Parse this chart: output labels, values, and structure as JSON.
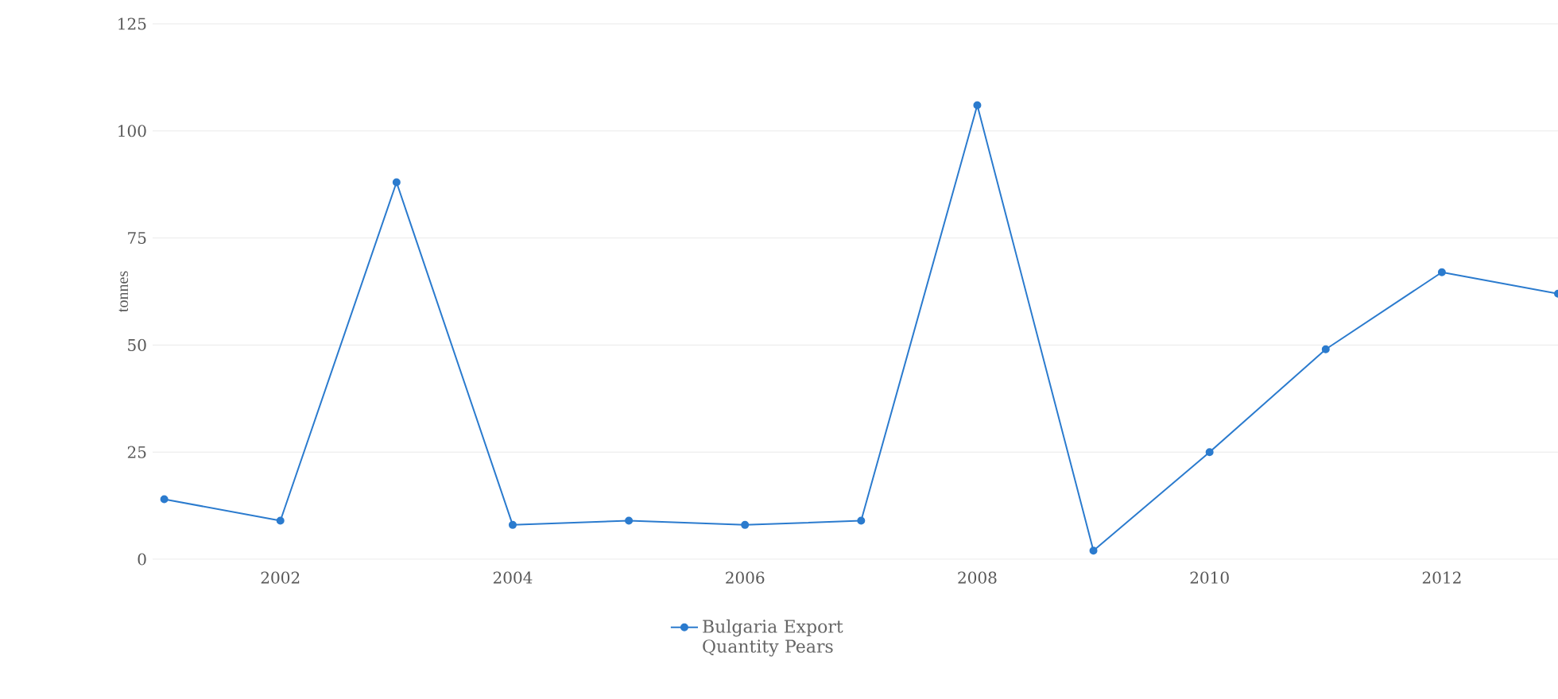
{
  "chart_data": {
    "type": "line",
    "ylabel": "tonnes",
    "x": [
      2001,
      2002,
      2003,
      2004,
      2005,
      2006,
      2007,
      2008,
      2009,
      2010,
      2011,
      2012,
      2013
    ],
    "series": [
      {
        "name": "Bulgaria Export Quantity Pears",
        "color": "#2b7bce",
        "values": [
          14,
          9,
          88,
          8,
          9,
          8,
          9,
          106,
          2,
          25,
          49,
          67,
          62
        ]
      }
    ],
    "xlim": [
      2000.9,
      2013
    ],
    "xticks": [
      2002,
      2004,
      2006,
      2008,
      2010,
      2012
    ],
    "ylim": [
      0,
      125
    ],
    "yticks": [
      0,
      25,
      50,
      75,
      100,
      125
    ],
    "grid": "y",
    "legend": "bottom",
    "marker": "circle",
    "line_style": "solid"
  }
}
